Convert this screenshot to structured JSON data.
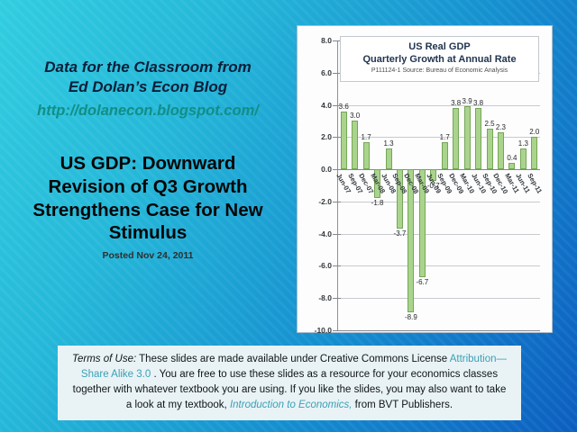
{
  "header": {
    "line1": "Data for the Classroom from",
    "line2": "Ed Dolan’s Econ Blog",
    "url": "http://dolanecon.blogspot.com/"
  },
  "title": {
    "lines": [
      "US GDP: Downward",
      "Revision of Q3 Growth",
      "Strengthens Case for New",
      "Stimulus"
    ],
    "posted": "Posted  Nov 24, 2011"
  },
  "chart_data": {
    "type": "bar",
    "title": "US  Real GDP",
    "subtitle": "Quarterly Growth at Annual Rate",
    "source_note": "P111124-1 Source: Bureau of Economic Analysis",
    "categories": [
      "Jun-07",
      "Sep-07",
      "Dec-07",
      "Mar-08",
      "Jun-08",
      "Sep-08",
      "Dec-08",
      "Mar-09",
      "Jun-09",
      "Sep-09",
      "Dec-09",
      "Mar-10",
      "Jun-10",
      "Sep-10",
      "Dec-10",
      "Mar-11",
      "Jun-11",
      "Sep-11"
    ],
    "values": [
      3.6,
      3.0,
      1.7,
      -1.8,
      1.3,
      -3.7,
      -8.9,
      -6.7,
      -0.7,
      1.7,
      3.8,
      3.9,
      3.8,
      2.5,
      2.3,
      0.4,
      1.3,
      2.0
    ],
    "xlabel": "",
    "ylabel": "",
    "ylim": [
      -10,
      8
    ],
    "ytick_step": 2,
    "grid": true,
    "legend": false,
    "bar_fill": "#aad48d",
    "bar_border": "#74a756"
  },
  "terms": {
    "seg1": "Terms of Use:",
    "seg2": " These slides are made available under Creative Commons License ",
    "seg3": "Attribution—Share Alike 3.0",
    "seg4": " . You are free to use these slides as a resource for your economics classes together with whatever textbook you are using. If you like the slides, you may also want to take a look at my textbook, ",
    "seg5": "Introduction to Economics,",
    "seg6": " from BVT Publishers."
  },
  "colors": {
    "background_top_left": "#31cde0",
    "background_bottom_right": "#0c5ec0",
    "blog_header_text": "#0b1e38",
    "url_teal": "#128e86",
    "terms_link_teal": "#3ba0b5",
    "terms_box_bg": "#e9f3f6",
    "bar_fill": "#aad48d",
    "bar_border": "#74a756"
  }
}
